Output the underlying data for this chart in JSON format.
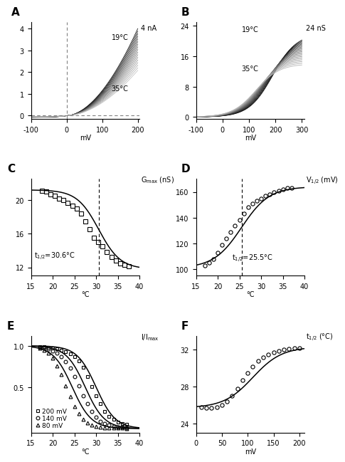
{
  "panel_A": {
    "label": "A",
    "xlabel": "mV",
    "ylabel_text": "4 nA",
    "yticks": [
      0,
      1,
      2,
      3,
      4
    ],
    "xticks": [
      -100,
      0,
      100,
      200
    ],
    "xlim": [
      -100,
      205
    ],
    "ylim": [
      -0.15,
      4.3
    ],
    "temp_label_19": "19°C",
    "temp_label_35": "35°C",
    "temps": [
      19,
      20,
      21,
      22,
      23,
      24,
      25,
      26,
      27,
      28,
      29,
      30,
      31,
      32,
      33,
      34,
      35
    ]
  },
  "panel_B": {
    "label": "B",
    "xlabel": "mV",
    "ylabel_text": "24 nS",
    "yticks": [
      0,
      8,
      16,
      24
    ],
    "xticks": [
      -100,
      0,
      100,
      200,
      300
    ],
    "xlim": [
      -100,
      310
    ],
    "ylim": [
      -0.5,
      25
    ],
    "temp_label_19": "19°C",
    "temp_label_35": "35°C",
    "temps": [
      19,
      20,
      21,
      22,
      23,
      24,
      25,
      26,
      27,
      28,
      29,
      30,
      31,
      32,
      33,
      34,
      35
    ]
  },
  "panel_C": {
    "label": "C",
    "xlabel": "°C",
    "yticks": [
      12,
      16,
      20
    ],
    "xticks": [
      15,
      20,
      25,
      30,
      35,
      40
    ],
    "xlim": [
      15,
      40
    ],
    "ylim": [
      11,
      22.5
    ],
    "xdash": 30.6,
    "ylabel_top": "G_max (nS)",
    "annot": "t₁₂=30.6°C",
    "data_x": [
      17.5,
      18.5,
      19.5,
      20.5,
      21.5,
      22.5,
      23.5,
      24.5,
      25.5,
      26.5,
      27.5,
      28.5,
      29.5,
      30.5,
      31.5,
      32.5,
      33.5,
      34.5,
      35.5,
      36.5,
      37.5
    ],
    "data_y": [
      21.1,
      21.0,
      20.7,
      20.5,
      20.2,
      20.0,
      19.7,
      19.3,
      19.0,
      18.4,
      17.5,
      16.5,
      15.5,
      15.0,
      14.5,
      13.8,
      13.2,
      12.8,
      12.5,
      12.3,
      12.1
    ],
    "fit_xhalf": 30.6,
    "fit_slope": 2.5,
    "fit_ymin": 11.8,
    "fit_ymax": 21.2
  },
  "panel_D": {
    "label": "D",
    "xlabel": "°C",
    "yticks": [
      100,
      120,
      140,
      160
    ],
    "xticks": [
      15,
      20,
      25,
      30,
      35,
      40
    ],
    "xlim": [
      15,
      40
    ],
    "ylim": [
      95,
      170
    ],
    "xdash": 25.5,
    "ylabel_top": "V_1/2 (mV)",
    "annot": "t₁₂=25.5°C",
    "data_x": [
      17,
      18,
      19,
      20,
      21,
      22,
      23,
      24,
      25,
      26,
      27,
      28,
      29,
      30,
      31,
      32,
      33,
      34,
      35,
      36,
      37
    ],
    "data_y": [
      103,
      105,
      108,
      113,
      119,
      124,
      129,
      134,
      138,
      143,
      148,
      151,
      153,
      155,
      157,
      158,
      160,
      161,
      162,
      163,
      163
    ],
    "fit_xhalf": 25.5,
    "fit_slope": 3.2,
    "fit_ymin": 101,
    "fit_ymax": 164
  },
  "panel_E": {
    "label": "E",
    "xlabel": "°C",
    "ylabel_top": "I/I_max",
    "yticks": [
      0.5,
      1.0
    ],
    "xticks": [
      15,
      20,
      25,
      30,
      35,
      40
    ],
    "xlim": [
      15,
      40
    ],
    "ylim": [
      -0.05,
      1.12
    ],
    "data_x_sq": [
      17,
      18,
      19,
      20,
      21,
      22,
      23,
      24,
      25,
      26,
      27,
      28,
      29,
      30,
      31,
      32,
      33,
      34,
      35,
      36,
      37
    ],
    "data_y_sq": [
      0.99,
      0.99,
      0.98,
      0.97,
      0.96,
      0.95,
      0.93,
      0.9,
      0.87,
      0.82,
      0.74,
      0.63,
      0.51,
      0.4,
      0.3,
      0.21,
      0.15,
      0.11,
      0.08,
      0.06,
      0.05
    ],
    "fit_sq_xhalf": 30.0,
    "fit_sq_slope": 2.2,
    "data_x_ci": [
      17,
      18,
      19,
      20,
      21,
      22,
      23,
      24,
      25,
      26,
      27,
      28,
      29,
      30,
      31,
      32,
      33,
      34,
      35,
      36,
      37
    ],
    "data_y_ci": [
      0.98,
      0.97,
      0.96,
      0.94,
      0.91,
      0.87,
      0.81,
      0.73,
      0.63,
      0.52,
      0.4,
      0.3,
      0.21,
      0.14,
      0.09,
      0.06,
      0.04,
      0.03,
      0.02,
      0.02,
      0.01
    ],
    "fit_ci_xhalf": 27.5,
    "fit_ci_slope": 2.2,
    "data_x_tr": [
      17,
      18,
      19,
      20,
      21,
      22,
      23,
      24,
      25,
      26,
      27,
      28,
      29,
      30,
      31,
      32,
      33,
      34,
      35,
      36,
      37
    ],
    "data_y_tr": [
      0.97,
      0.95,
      0.91,
      0.85,
      0.76,
      0.65,
      0.52,
      0.39,
      0.27,
      0.18,
      0.11,
      0.07,
      0.04,
      0.03,
      0.02,
      0.01,
      0.01,
      0.01,
      0.01,
      0.01,
      0.0
    ],
    "fit_tr_xhalf": 24.5,
    "fit_tr_slope": 2.2
  },
  "panel_F": {
    "label": "F",
    "xlabel": "mV",
    "ylabel_top": "t_1/2 (°C)",
    "yticks": [
      24,
      28,
      32
    ],
    "xticks": [
      0,
      50,
      100,
      150,
      200
    ],
    "xlim": [
      0,
      210
    ],
    "ylim": [
      23.0,
      33.5
    ],
    "data_x": [
      10,
      20,
      30,
      40,
      50,
      60,
      70,
      80,
      90,
      100,
      110,
      120,
      130,
      140,
      150,
      160,
      170,
      180,
      190,
      200
    ],
    "data_y": [
      25.8,
      25.7,
      25.7,
      25.8,
      26.0,
      26.4,
      27.0,
      27.8,
      28.7,
      29.5,
      30.2,
      30.8,
      31.2,
      31.5,
      31.7,
      31.9,
      32.0,
      32.1,
      32.2,
      32.2
    ],
    "fit_xhalf": 110,
    "fit_slope": 28,
    "fit_ymin": 25.7,
    "fit_ymax": 32.3
  }
}
